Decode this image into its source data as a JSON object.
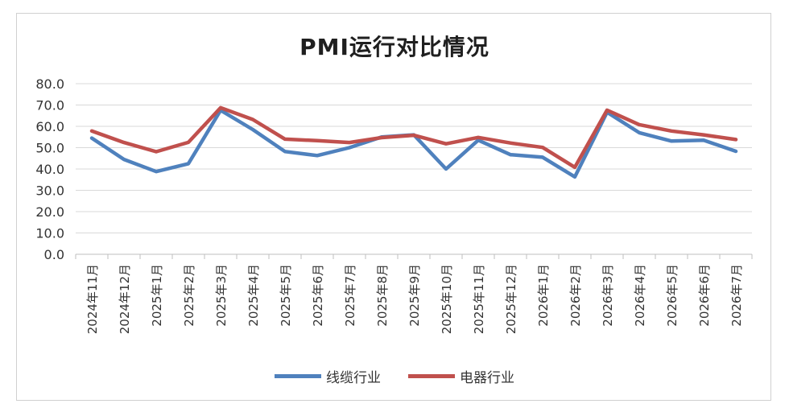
{
  "chart_data": {
    "type": "line",
    "title": "PMI运行对比情况",
    "categories": [
      "2024年11月",
      "2024年12月",
      "2025年1月",
      "2025年2月",
      "2025年3月",
      "2025年4月",
      "2025年5月",
      "2025年6月",
      "2025年7月",
      "2025年8月",
      "2025年9月",
      "2025年10月",
      "2025年11月",
      "2025年12月",
      "2026年1月",
      "2026年2月",
      "2026年3月",
      "2026年4月",
      "2026年5月",
      "2026年6月",
      "2026年7月"
    ],
    "y_ticks": [
      "0.0",
      "10.0",
      "20.0",
      "30.0",
      "40.0",
      "50.0",
      "60.0",
      "70.0",
      "80.0"
    ],
    "ylim": [
      0,
      80
    ],
    "grid": true,
    "legend_position": "bottom",
    "series": [
      {
        "name": "线缆行业",
        "color": "#4f81bd",
        "values": [
          54.5,
          44.5,
          38.8,
          42.5,
          67.5,
          58.5,
          48.2,
          46.3,
          50.0,
          55.0,
          56.0,
          40.0,
          53.5,
          46.7,
          45.5,
          36.3,
          66.6,
          57.0,
          53.1,
          53.5,
          48.3
        ]
      },
      {
        "name": "电器行业",
        "color": "#c0504d",
        "values": [
          57.8,
          52.4,
          48.1,
          52.5,
          68.7,
          63.2,
          54.0,
          53.3,
          52.4,
          54.7,
          55.8,
          51.8,
          54.8,
          52.2,
          50.1,
          40.8,
          67.6,
          60.8,
          57.8,
          56.0,
          53.8
        ]
      }
    ]
  }
}
